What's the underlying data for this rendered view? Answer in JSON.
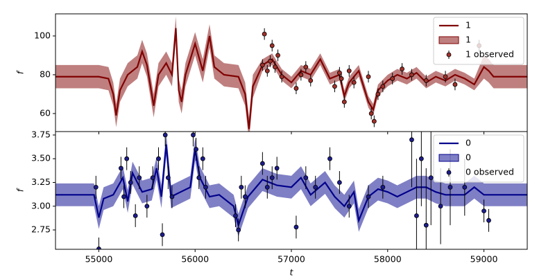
{
  "chart_data": [
    {
      "type": "line",
      "ylabel": "f",
      "legend": "upper right",
      "xlim": [
        54550,
        59450
      ],
      "xticks": [
        55000,
        56000,
        57000,
        58000,
        59000
      ],
      "ylim": [
        50.7,
        111.4
      ],
      "yticks": [
        60,
        80,
        100
      ],
      "x": [
        54550,
        55000,
        55100,
        55150,
        55180,
        55220,
        55300,
        55400,
        55450,
        55500,
        55570,
        55620,
        55700,
        55760,
        55800,
        55830,
        55860,
        55900,
        56000,
        56080,
        56150,
        56200,
        56300,
        56450,
        56520,
        56560,
        56600,
        56700,
        56800,
        56900,
        57000,
        57100,
        57200,
        57300,
        57400,
        57500,
        57550,
        57600,
        57700,
        57800,
        57850,
        57900,
        58000,
        58100,
        58200,
        58300,
        58400,
        58500,
        58600,
        58700,
        58800,
        58900,
        59000,
        59050,
        59100,
        59450
      ],
      "series": [
        {
          "name": "1",
          "kind": "line",
          "color": "#800000",
          "values": [
            79,
            79,
            78,
            70,
            59,
            72,
            80,
            84,
            92,
            85,
            64,
            80,
            86,
            80,
            104,
            72,
            66,
            80,
            96,
            82,
            100,
            84,
            80,
            79,
            70,
            52,
            74,
            85,
            88,
            80,
            76,
            82,
            80,
            88,
            78,
            80,
            69,
            76,
            82,
            66,
            62,
            72,
            77,
            80,
            78,
            81,
            76,
            79,
            77,
            80,
            78,
            75,
            84,
            82,
            79,
            79
          ]
        },
        {
          "name": "1",
          "kind": "band",
          "color": "#800000",
          "lower": [
            73,
            73,
            72,
            64,
            53,
            66,
            74,
            78,
            86,
            79,
            58,
            74,
            80,
            74,
            98,
            66,
            60,
            74,
            90,
            76,
            94,
            78,
            74,
            73,
            64,
            46,
            68,
            82,
            85,
            77,
            73,
            79,
            77,
            85,
            75,
            77,
            66,
            73,
            79,
            63,
            59,
            69,
            74,
            77,
            75,
            78,
            73,
            76,
            74,
            77,
            75,
            72,
            78,
            76,
            73,
            73
          ],
          "upper": [
            85,
            85,
            84,
            76,
            65,
            78,
            86,
            90,
            98,
            91,
            70,
            86,
            92,
            86,
            110,
            78,
            72,
            86,
            102,
            88,
            106,
            90,
            86,
            85,
            76,
            58,
            80,
            88,
            91,
            83,
            79,
            85,
            83,
            91,
            81,
            83,
            72,
            79,
            85,
            69,
            65,
            75,
            80,
            83,
            81,
            84,
            79,
            82,
            80,
            83,
            81,
            78,
            90,
            88,
            85,
            85
          ]
        },
        {
          "name": "1 observed",
          "kind": "points",
          "color": "#a0302a",
          "x": [
            56700,
            56720,
            56750,
            56780,
            56800,
            56830,
            56860,
            56900,
            57050,
            57100,
            57150,
            57200,
            57450,
            57500,
            57520,
            57550,
            57600,
            57650,
            57800,
            57830,
            57860,
            57900,
            57950,
            58050,
            58150,
            58250,
            58400,
            58600,
            58700,
            58950
          ],
          "values": [
            85,
            101,
            82,
            87,
            95,
            84,
            90,
            79,
            73,
            80,
            84,
            77,
            74,
            81,
            78,
            66,
            82,
            76,
            79,
            60,
            56,
            70,
            74,
            78,
            83,
            80,
            77,
            79,
            75,
            95
          ],
          "errors": [
            3,
            3,
            3,
            3,
            3,
            3,
            3,
            3,
            3,
            3,
            3,
            3,
            3,
            3,
            3,
            3,
            3,
            3,
            3,
            3,
            3,
            3,
            3,
            3,
            3,
            3,
            3,
            3,
            3,
            3
          ]
        }
      ]
    },
    {
      "type": "line",
      "ylabel": "f",
      "xlabel": "t",
      "legend": "upper right",
      "xlim": [
        54550,
        59450
      ],
      "xticks": [
        55000,
        56000,
        57000,
        58000,
        59000
      ],
      "ylim": [
        2.546,
        3.786
      ],
      "yticks": [
        {
          "value": 2.75,
          "label": "2.75"
        },
        {
          "value": 3,
          "label": "3.00"
        },
        {
          "value": 3.25,
          "label": "3.25"
        },
        {
          "value": 3.5,
          "label": "3.50"
        },
        {
          "value": 3.75,
          "label": "3.75"
        }
      ],
      "x": [
        54550,
        54950,
        55000,
        55050,
        55150,
        55250,
        55300,
        55350,
        55450,
        55550,
        55600,
        55650,
        55700,
        55750,
        55850,
        55950,
        56000,
        56050,
        56150,
        56250,
        56400,
        56450,
        56550,
        56700,
        56850,
        57000,
        57100,
        57200,
        57350,
        57450,
        57550,
        57650,
        57700,
        57800,
        57900,
        58000,
        58100,
        58200,
        58300,
        58400,
        58500,
        58600,
        58700,
        58800,
        58900,
        59000,
        59050,
        59450
      ],
      "series": [
        {
          "name": "0",
          "kind": "line",
          "color": "#00008b",
          "values": [
            3.12,
            3.12,
            2.88,
            3.08,
            3.12,
            3.3,
            3.05,
            3.35,
            3.15,
            3.18,
            3.4,
            3.1,
            3.65,
            3.1,
            3.15,
            3.2,
            3.6,
            3.3,
            3.1,
            3.12,
            3.0,
            2.8,
            3.1,
            3.28,
            3.22,
            3.2,
            3.3,
            3.12,
            3.25,
            3.1,
            3.0,
            3.15,
            2.85,
            3.1,
            3.18,
            3.15,
            3.1,
            3.15,
            3.2,
            3.2,
            3.15,
            3.12,
            3.12,
            3.12,
            3.2,
            3.12,
            3.12,
            3.12
          ]
        },
        {
          "name": "0",
          "kind": "band",
          "color": "#00008b",
          "lower": [
            3.0,
            3.0,
            2.76,
            2.96,
            3.0,
            3.18,
            2.93,
            3.23,
            3.03,
            3.06,
            3.28,
            2.98,
            3.53,
            2.98,
            3.03,
            3.08,
            3.48,
            3.18,
            2.98,
            3.0,
            2.88,
            2.68,
            2.98,
            3.16,
            3.1,
            3.08,
            3.18,
            3.0,
            3.13,
            2.98,
            2.88,
            3.03,
            2.73,
            2.98,
            3.06,
            3.03,
            2.98,
            3.03,
            3.08,
            3.08,
            3.03,
            3.0,
            3.0,
            3.0,
            3.08,
            3.0,
            3.0,
            3.0
          ],
          "upper": [
            3.24,
            3.24,
            3.0,
            3.2,
            3.24,
            3.42,
            3.17,
            3.47,
            3.27,
            3.3,
            3.52,
            3.22,
            3.77,
            3.22,
            3.27,
            3.32,
            3.72,
            3.42,
            3.22,
            3.24,
            3.12,
            2.92,
            3.22,
            3.4,
            3.34,
            3.32,
            3.42,
            3.24,
            3.37,
            3.22,
            3.12,
            3.27,
            2.97,
            3.22,
            3.3,
            3.27,
            3.22,
            3.27,
            3.32,
            3.32,
            3.27,
            3.24,
            3.24,
            3.24,
            3.32,
            3.24,
            3.24,
            3.24
          ]
        },
        {
          "name": "0 observed",
          "kind": "points",
          "color": "#1c1c8c",
          "x": [
            54970,
            55000,
            55230,
            55260,
            55290,
            55330,
            55380,
            55420,
            55500,
            55560,
            55620,
            55660,
            55690,
            55720,
            55760,
            55980,
            56010,
            56040,
            56080,
            56110,
            56420,
            56450,
            56480,
            56520,
            56700,
            56750,
            56800,
            56850,
            57050,
            57150,
            57250,
            57400,
            57500,
            57600,
            57800,
            57950,
            58250,
            58300,
            58350,
            58400,
            58450,
            58550,
            58650,
            58800,
            59000,
            59050
          ],
          "values": [
            3.2,
            2.55,
            3.4,
            3.1,
            3.5,
            3.25,
            2.9,
            3.3,
            3.0,
            3.3,
            3.5,
            2.7,
            3.75,
            3.3,
            3.1,
            3.75,
            3.6,
            3.3,
            3.5,
            3.2,
            2.9,
            2.75,
            3.2,
            3.1,
            3.45,
            3.2,
            3.3,
            3.4,
            2.78,
            3.3,
            3.2,
            3.5,
            3.25,
            3.0,
            3.1,
            3.2,
            3.7,
            2.9,
            3.5,
            2.8,
            3.3,
            3.0,
            3.2,
            3.2,
            2.95,
            2.85
          ],
          "errors": [
            0.12,
            0.12,
            0.12,
            0.12,
            0.12,
            0.12,
            0.12,
            0.12,
            0.12,
            0.12,
            0.12,
            0.12,
            0.12,
            0.12,
            0.12,
            0.12,
            0.12,
            0.12,
            0.12,
            0.12,
            0.12,
            0.12,
            0.12,
            0.12,
            0.12,
            0.12,
            0.12,
            0.12,
            0.12,
            0.12,
            0.12,
            0.12,
            0.12,
            0.12,
            0.12,
            0.12,
            0.5,
            0.6,
            0.5,
            0.6,
            0.5,
            0.4,
            0.4,
            0.3,
            0.12,
            0.12
          ]
        }
      ]
    }
  ]
}
